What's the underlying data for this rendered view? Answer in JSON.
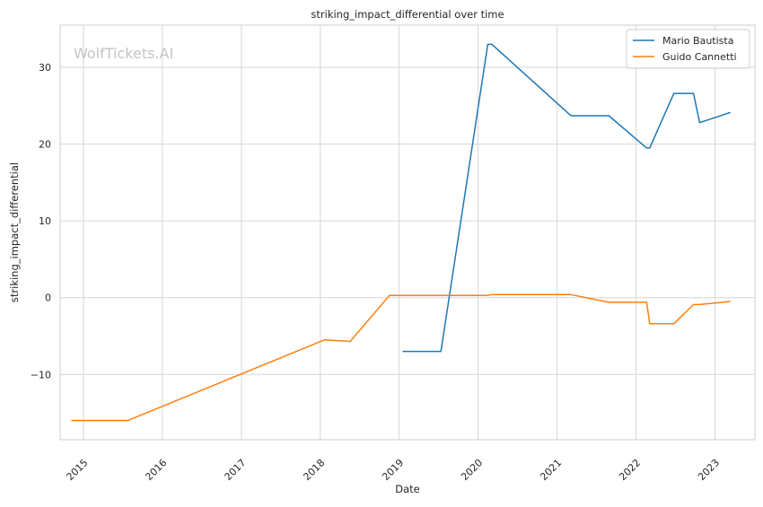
{
  "chart_data": {
    "type": "line",
    "title": "striking_impact_differential over time",
    "xlabel": "Date",
    "ylabel": "striking_impact_differential",
    "x_ticks": [
      "2015",
      "2016",
      "2017",
      "2018",
      "2019",
      "2020",
      "2021",
      "2022",
      "2023"
    ],
    "y_ticks": [
      -10,
      0,
      10,
      20,
      30
    ],
    "xlim": [
      "2014-09-15",
      "2023-07-05"
    ],
    "ylim": [
      -18.5,
      35.5
    ],
    "grid": true,
    "legend": "top-right",
    "watermark": "WolfTickets.AI",
    "series": [
      {
        "name": "Mario Bautista",
        "color": "#1f77b4",
        "points": [
          [
            "2019-01-19",
            -7.0
          ],
          [
            "2019-07-13",
            -7.0
          ],
          [
            "2020-02-15",
            33.0
          ],
          [
            "2020-03-05",
            33.0
          ],
          [
            "2021-03-06",
            23.7
          ],
          [
            "2021-08-28",
            23.7
          ],
          [
            "2022-02-19",
            19.5
          ],
          [
            "2022-03-05",
            19.5
          ],
          [
            "2022-06-25",
            26.6
          ],
          [
            "2022-09-24",
            26.6
          ],
          [
            "2022-10-22",
            22.8
          ],
          [
            "2023-03-11",
            24.1
          ]
        ]
      },
      {
        "name": "Guido Cannetti",
        "color": "#ff7f0e",
        "points": [
          [
            "2014-11-08",
            -16.0
          ],
          [
            "2015-07-25",
            -16.0
          ],
          [
            "2018-01-20",
            -5.5
          ],
          [
            "2018-05-19",
            -5.7
          ],
          [
            "2018-11-17",
            0.3
          ],
          [
            "2020-02-15",
            0.3
          ],
          [
            "2020-03-05",
            0.4
          ],
          [
            "2021-03-06",
            0.4
          ],
          [
            "2021-08-28",
            -0.6
          ],
          [
            "2022-02-19",
            -0.6
          ],
          [
            "2022-03-05",
            -3.4
          ],
          [
            "2022-06-25",
            -3.4
          ],
          [
            "2022-09-24",
            -0.9
          ],
          [
            "2022-10-22",
            -0.9
          ],
          [
            "2023-03-11",
            -0.5
          ]
        ]
      }
    ]
  }
}
